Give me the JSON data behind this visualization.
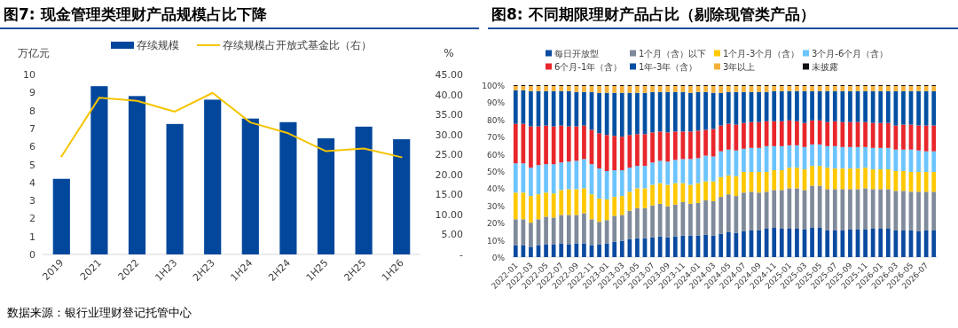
{
  "chart_data": [
    {
      "type": "bar",
      "title": "图7: 现金管理类理财产品规模占比下降",
      "ylabel": "万亿元",
      "y2label": "%",
      "categories": [
        "2019",
        "2021",
        "2022",
        "1H23",
        "2H23",
        "1H24",
        "2H24",
        "1H25",
        "2H25",
        "1H26"
      ],
      "series": [
        {
          "name": "存续规模",
          "color": "#03479c",
          "values": [
            4.2,
            9.35,
            8.8,
            7.25,
            8.6,
            7.55,
            7.35,
            6.45,
            7.1,
            6.4
          ]
        },
        {
          "name": "存续规模占开放式基金比（右）",
          "type": "line",
          "axis": "y2",
          "color": "#f5c400",
          "values": [
            24.5,
            39.2,
            38.4,
            35.7,
            40.4,
            33.0,
            30.3,
            25.8,
            26.5,
            24.3
          ]
        }
      ],
      "ylim": [
        0,
        10
      ],
      "yticks": [
        0,
        1,
        2,
        3,
        4,
        5,
        6,
        7,
        8,
        9,
        10
      ],
      "y2lim": [
        0,
        45
      ],
      "y2ticks": [
        {
          "value": 0,
          "label": "-"
        },
        {
          "value": 5,
          "label": "5.00"
        },
        {
          "value": 10,
          "label": "10.00"
        },
        {
          "value": 15,
          "label": "15.00"
        },
        {
          "value": 20,
          "label": "20.00"
        },
        {
          "value": 25,
          "label": "25.00"
        },
        {
          "value": 30,
          "label": "30.00"
        },
        {
          "value": 35,
          "label": "35.00"
        },
        {
          "value": 40,
          "label": "40.00"
        },
        {
          "value": 45,
          "label": "45.00"
        }
      ],
      "legend": "top",
      "annotations": [
        "数据来源：银行业理财登记托管中心"
      ]
    },
    {
      "type": "bar",
      "stacked": true,
      "title": "图8: 不同期限理财产品占比（剔除现管类产品）",
      "categories": [
        "2022-01",
        null,
        "2022-03",
        null,
        "2022-05",
        null,
        "2022-07",
        null,
        "2022-09",
        null,
        "2022-11",
        null,
        "2023-01",
        null,
        "2023-03",
        null,
        "2023-05",
        null,
        "2023-07",
        null,
        "2023-09",
        null,
        "2023-11",
        null,
        "2024-01",
        null,
        "2024-03",
        null,
        "2024-05",
        null,
        "2024-07",
        null,
        "2024-09",
        null,
        "2024-11",
        null,
        "2025-01",
        null,
        "2025-03",
        null,
        "2025-05",
        null,
        "2025-07",
        null,
        "2025-09",
        null,
        "2025-11",
        null,
        "2026-01",
        null,
        "2026-03",
        null,
        "2026-05",
        null,
        "2026-07",
        null
      ],
      "series": [
        {
          "name": "每日开放型",
          "color": "#0a4aa0",
          "values": [
            7,
            7,
            6,
            7,
            7.5,
            7.5,
            8,
            7.5,
            8,
            8,
            7,
            7.5,
            8,
            9,
            9.5,
            10.5,
            11,
            11,
            11.5,
            12,
            11.5,
            12,
            12.5,
            12.5,
            12.5,
            13,
            12.5,
            13.5,
            14.5,
            14,
            15,
            15.5,
            15.5,
            16.5,
            17,
            16.5,
            16.5,
            16.5,
            16,
            17,
            17,
            15.5,
            15.5,
            15.5,
            16,
            16,
            16,
            16.5,
            16.5,
            16.5,
            15.5,
            15.5,
            15.5,
            15,
            15.5,
            15.5
          ]
        },
        {
          "name": "1个月（含）以下",
          "color": "#7f8a9a",
          "values": [
            15,
            15,
            14,
            15,
            16,
            15.5,
            16.5,
            17,
            16.5,
            17.5,
            15,
            13,
            13.5,
            15,
            15,
            16.5,
            17.5,
            17.5,
            18.5,
            19,
            18,
            18.5,
            19.5,
            18.5,
            19,
            20,
            20,
            21.5,
            22,
            21.5,
            22.5,
            22.5,
            22,
            21.5,
            22,
            22.5,
            23.5,
            23.5,
            23,
            24.5,
            24.5,
            24,
            24,
            24,
            23.5,
            23.5,
            24,
            23,
            23,
            23,
            23,
            23,
            22.5,
            23,
            22.5,
            22.5
          ]
        },
        {
          "name": "1个月-3个月（含）",
          "color": "#ffc800",
          "values": [
            15.5,
            15.5,
            15.5,
            14.5,
            14,
            14,
            14.5,
            15,
            15,
            14.5,
            14.5,
            13.5,
            12,
            11,
            11,
            11,
            11.5,
            11.5,
            12,
            12,
            12.5,
            12.5,
            11,
            11,
            11.5,
            11,
            11.5,
            11.5,
            11,
            11.5,
            12,
            11.5,
            12,
            11.5,
            11.5,
            11.5,
            12,
            12,
            12,
            11.5,
            11.5,
            12.5,
            12,
            12,
            12,
            12,
            12,
            11.5,
            11.5,
            11.5,
            11.5,
            11.5,
            11.5,
            11.5,
            11.5,
            11.5
          ]
        },
        {
          "name": "3个月-6个月（含）",
          "color": "#6cc4ff",
          "values": [
            17,
            17,
            16.5,
            17,
            16.5,
            17,
            16,
            16,
            16.5,
            17,
            17.5,
            17.5,
            16.5,
            15.5,
            15,
            14,
            13,
            13,
            13,
            13,
            13.5,
            13.5,
            14,
            15,
            14.5,
            15,
            14.5,
            15,
            15,
            15,
            13.5,
            14,
            14,
            15,
            14,
            14,
            13,
            13,
            13,
            12.5,
            12.5,
            12.5,
            13,
            12.5,
            12.5,
            12.5,
            12,
            12.5,
            12.5,
            12.5,
            12.5,
            12.5,
            13,
            12.5,
            12,
            12
          ]
        },
        {
          "name": "6个月-1年（含）",
          "color": "#e8262b",
          "values": [
            23,
            23,
            24,
            22.5,
            22.5,
            22,
            21.5,
            20.5,
            20,
            19.5,
            20,
            20.5,
            21,
            20,
            19.5,
            19,
            18.5,
            18.5,
            17.5,
            17,
            17,
            16.5,
            16,
            16,
            16,
            15,
            16,
            15,
            15,
            15,
            15,
            15,
            15,
            14.5,
            14.5,
            14.5,
            14.5,
            14,
            14,
            14,
            14,
            14,
            14.5,
            14.5,
            14.5,
            14.5,
            14.5,
            14.5,
            14.5,
            14.5,
            14,
            14.5,
            14.5,
            14.5,
            15,
            15
          ]
        },
        {
          "name": "1年-3年（含）",
          "color": "#0350a3",
          "values": [
            19.5,
            19.5,
            20.5,
            20.5,
            20,
            20.5,
            20,
            20.5,
            20,
            19.5,
            22,
            23.5,
            24.5,
            25,
            25.5,
            24.5,
            24,
            24,
            23.5,
            23,
            23.5,
            23,
            23,
            22.5,
            22.5,
            22,
            21,
            19,
            18.5,
            19,
            18,
            17.5,
            17.5,
            17,
            17.5,
            17.5,
            17,
            17.5,
            18.5,
            17,
            17,
            18,
            17.5,
            18,
            18,
            18,
            18,
            18.5,
            18.5,
            18.5,
            20,
            19.5,
            19.5,
            20,
            20,
            20
          ]
        },
        {
          "name": "3年以上",
          "color": "#f4b13a",
          "values": [
            2.5,
            2.5,
            3,
            3,
            3,
            3,
            3,
            3,
            3.5,
            3.5,
            3.5,
            4,
            4,
            4,
            4,
            4,
            4,
            4,
            3.5,
            3.5,
            3.5,
            3.5,
            3.5,
            4,
            3.5,
            3.5,
            4,
            4,
            3.5,
            3.5,
            3.5,
            3.5,
            3.5,
            3.5,
            3,
            3,
            3,
            3,
            3,
            3,
            3,
            3,
            3,
            3,
            3,
            3,
            3,
            3,
            3,
            3,
            3,
            3,
            3,
            3,
            3,
            3
          ]
        },
        {
          "name": "未披露",
          "color": "#111111",
          "values": [
            0.5,
            0.5,
            0.5,
            0.5,
            0.5,
            0.5,
            0.5,
            0.5,
            0.5,
            0.5,
            0.5,
            0.5,
            0.5,
            0.5,
            0.5,
            0.5,
            0.5,
            0.5,
            0.5,
            0.5,
            0.5,
            0.5,
            0.5,
            0.5,
            0.5,
            0.5,
            0.5,
            0.5,
            0.5,
            0.5,
            0.5,
            0.5,
            0.5,
            0.5,
            0.5,
            0.5,
            0.5,
            0.5,
            0.5,
            0.5,
            0.5,
            0.5,
            0.5,
            0.5,
            0.5,
            0.5,
            0.5,
            0.5,
            0.5,
            0.5,
            0.5,
            0.5,
            0.5,
            0.5,
            0.5,
            0.5
          ]
        }
      ],
      "ylim": [
        0,
        100
      ],
      "yticks": [
        {
          "value": 0,
          "label": "0%"
        },
        {
          "value": 10,
          "label": "10%"
        },
        {
          "value": 20,
          "label": "20%"
        },
        {
          "value": 30,
          "label": "30%"
        },
        {
          "value": 40,
          "label": "40%"
        },
        {
          "value": 50,
          "label": "50%"
        },
        {
          "value": 60,
          "label": "60%"
        },
        {
          "value": 70,
          "label": "70%"
        },
        {
          "value": 80,
          "label": "80%"
        },
        {
          "value": 90,
          "label": "90%"
        },
        {
          "value": 100,
          "label": "100%"
        }
      ],
      "legend": "top"
    }
  ]
}
